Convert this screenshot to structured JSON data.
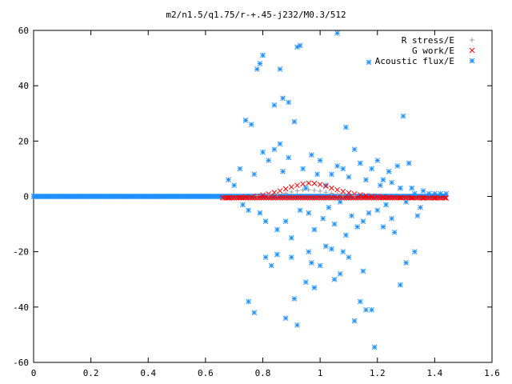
{
  "chart_data": {
    "type": "scatter",
    "title": "m2/n1.5/q1.75/r-+.45-j232/M0.3/512",
    "xlabel": "",
    "ylabel": "",
    "xlim": [
      0,
      1.6
    ],
    "ylim": [
      -60,
      60
    ],
    "xticks": [
      "0",
      "0.2",
      "0.4",
      "0.6",
      "0.8",
      "1",
      "1.2",
      "1.4",
      "1.6"
    ],
    "yticks": [
      "60",
      "40",
      "20",
      "0",
      "-20",
      "-40",
      "-60"
    ],
    "grid": false,
    "legend_position": "top-right",
    "series": [
      {
        "name": "R stress/E",
        "color": "#a0a0a0",
        "marker": "plus",
        "points": [
          [
            0.78,
            0.3
          ],
          [
            0.82,
            0.5
          ],
          [
            0.85,
            0.8
          ],
          [
            0.88,
            1.2
          ],
          [
            0.9,
            1.6
          ],
          [
            0.92,
            2.0
          ],
          [
            0.94,
            2.3
          ],
          [
            0.96,
            2.4
          ],
          [
            0.98,
            2.2
          ],
          [
            1.0,
            1.9
          ],
          [
            1.02,
            1.5
          ],
          [
            1.04,
            1.1
          ],
          [
            1.06,
            0.8
          ],
          [
            1.08,
            0.5
          ],
          [
            1.12,
            0.3
          ]
        ]
      },
      {
        "name": "G work/E",
        "color": "#ff0000",
        "marker": "cross",
        "points": [
          [
            0.66,
            -0.5
          ],
          [
            0.68,
            -0.5
          ],
          [
            0.7,
            -0.5
          ],
          [
            0.72,
            -0.4
          ],
          [
            0.74,
            -0.3
          ],
          [
            0.76,
            -0.2
          ],
          [
            0.78,
            0.1
          ],
          [
            0.8,
            0.5
          ],
          [
            0.82,
            0.9
          ],
          [
            0.84,
            1.4
          ],
          [
            0.86,
            2.0
          ],
          [
            0.88,
            2.7
          ],
          [
            0.9,
            3.4
          ],
          [
            0.92,
            4.0
          ],
          [
            0.94,
            4.5
          ],
          [
            0.96,
            4.8
          ],
          [
            0.98,
            4.7
          ],
          [
            1.0,
            4.3
          ],
          [
            1.02,
            3.7
          ],
          [
            1.04,
            3.0
          ],
          [
            1.06,
            2.4
          ],
          [
            1.08,
            1.8
          ],
          [
            1.1,
            1.3
          ],
          [
            1.12,
            0.9
          ],
          [
            1.14,
            0.6
          ],
          [
            1.16,
            0.3
          ],
          [
            1.18,
            0.1
          ],
          [
            1.2,
            0.0
          ],
          [
            1.22,
            -0.2
          ],
          [
            1.24,
            -0.3
          ],
          [
            1.26,
            -0.4
          ],
          [
            1.28,
            -0.4
          ],
          [
            1.3,
            -0.5
          ],
          [
            1.32,
            -0.5
          ],
          [
            1.34,
            -0.5
          ],
          [
            1.36,
            -0.6
          ],
          [
            1.38,
            -0.6
          ],
          [
            1.4,
            -0.6
          ],
          [
            1.42,
            -0.6
          ],
          [
            1.44,
            -0.6
          ]
        ]
      },
      {
        "name": "Acoustic flux/E",
        "color": "#1e90ff",
        "marker": "star",
        "points": [
          [
            0.74,
            27.5
          ],
          [
            0.75,
            -38
          ],
          [
            0.76,
            26
          ],
          [
            0.77,
            -42
          ],
          [
            0.78,
            46
          ],
          [
            0.79,
            48
          ],
          [
            0.8,
            51
          ],
          [
            0.81,
            -22
          ],
          [
            0.83,
            -25
          ],
          [
            0.84,
            33
          ],
          [
            0.85,
            -21
          ],
          [
            0.86,
            46
          ],
          [
            0.87,
            35.5
          ],
          [
            0.88,
            -44
          ],
          [
            0.89,
            34
          ],
          [
            0.9,
            -22
          ],
          [
            0.91,
            -37
          ],
          [
            0.92,
            -46.5
          ],
          [
            0.93,
            54.5
          ],
          [
            0.92,
            54
          ],
          [
            0.95,
            -31
          ],
          [
            0.96,
            -20
          ],
          [
            0.97,
            -24
          ],
          [
            0.98,
            -33
          ],
          [
            1.0,
            -25
          ],
          [
            1.02,
            -18
          ],
          [
            1.04,
            -19
          ],
          [
            1.05,
            -30
          ],
          [
            1.06,
            59
          ],
          [
            1.07,
            -28
          ],
          [
            1.08,
            -20
          ],
          [
            1.09,
            25
          ],
          [
            1.1,
            -22
          ],
          [
            1.12,
            -45
          ],
          [
            1.14,
            -38
          ],
          [
            1.15,
            -27
          ],
          [
            1.16,
            -41
          ],
          [
            1.17,
            48.5
          ],
          [
            1.18,
            -41
          ],
          [
            1.19,
            -54.5
          ],
          [
            1.2,
            13
          ],
          [
            1.22,
            -11
          ],
          [
            1.25,
            -8
          ],
          [
            1.28,
            -32
          ],
          [
            1.29,
            29
          ],
          [
            1.3,
            -24
          ],
          [
            1.31,
            12
          ],
          [
            1.33,
            -20
          ],
          [
            1.34,
            -7
          ],
          [
            1.35,
            -4
          ],
          [
            0.68,
            6
          ],
          [
            0.7,
            4
          ],
          [
            0.72,
            10
          ],
          [
            0.73,
            -3
          ],
          [
            0.75,
            -5
          ],
          [
            0.77,
            8
          ],
          [
            0.79,
            -6
          ],
          [
            0.8,
            16
          ],
          [
            0.81,
            -9
          ],
          [
            0.82,
            13
          ],
          [
            0.84,
            17
          ],
          [
            0.85,
            -12
          ],
          [
            0.86,
            19
          ],
          [
            0.87,
            9
          ],
          [
            0.88,
            -9
          ],
          [
            0.89,
            14
          ],
          [
            0.9,
            -15
          ],
          [
            0.91,
            27
          ],
          [
            0.93,
            -5
          ],
          [
            0.94,
            10
          ],
          [
            0.95,
            3
          ],
          [
            0.96,
            -6
          ],
          [
            0.97,
            15
          ],
          [
            0.98,
            -12
          ],
          [
            0.99,
            8
          ],
          [
            1.0,
            13
          ],
          [
            1.01,
            -8
          ],
          [
            1.02,
            4
          ],
          [
            1.03,
            -4
          ],
          [
            1.04,
            8
          ],
          [
            1.05,
            -10
          ],
          [
            1.06,
            11
          ],
          [
            1.07,
            -2
          ],
          [
            1.08,
            10
          ],
          [
            1.09,
            -14
          ],
          [
            1.1,
            7
          ],
          [
            1.11,
            -7
          ],
          [
            1.12,
            17
          ],
          [
            1.13,
            -11
          ],
          [
            1.14,
            12
          ],
          [
            1.15,
            -9
          ],
          [
            1.16,
            6
          ],
          [
            1.17,
            -6
          ],
          [
            1.18,
            10
          ],
          [
            1.2,
            -5
          ],
          [
            1.21,
            4
          ],
          [
            1.22,
            6
          ],
          [
            1.23,
            -3
          ],
          [
            1.24,
            9
          ],
          [
            1.25,
            5
          ],
          [
            1.26,
            -13
          ],
          [
            1.27,
            11
          ],
          [
            1.28,
            3
          ],
          [
            1.3,
            -2
          ],
          [
            1.32,
            3
          ],
          [
            1.33,
            1
          ],
          [
            1.36,
            2
          ],
          [
            1.38,
            1
          ],
          [
            1.4,
            1
          ],
          [
            1.42,
            1
          ],
          [
            1.44,
            1
          ]
        ]
      }
    ]
  }
}
